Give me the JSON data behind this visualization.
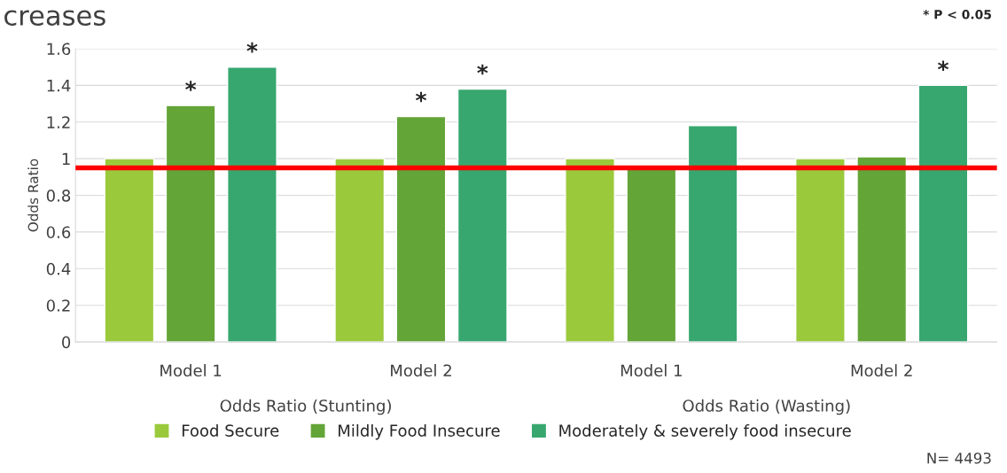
{
  "chart_data": {
    "type": "bar",
    "title": "creases",
    "ylabel": "Odds Ratio",
    "categories": [
      "Model 1",
      "Model 2",
      "Model 1",
      "Model 2"
    ],
    "series": [
      {
        "name": "Food Secure",
        "color": "#9aca3c",
        "values": [
          1.0,
          1.0,
          1.0,
          1.0
        ]
      },
      {
        "name": "Mildly Food Insecure",
        "color": "#63a537",
        "values": [
          1.29,
          1.23,
          0.95,
          1.01
        ]
      },
      {
        "name": "Moderately & severely food insecure",
        "color": "#37a76f",
        "values": [
          1.5,
          1.38,
          1.18,
          1.4
        ]
      }
    ],
    "ylim": [
      0,
      1.6
    ],
    "yticks": [
      0,
      {
        "value": 0.2,
        "label": "0.2"
      },
      {
        "value": 0.4,
        "label": "0.4"
      },
      {
        "value": 0.6,
        "label": "0.6"
      },
      {
        "value": 0.8,
        "label": "0.8"
      },
      1,
      {
        "value": 1.2,
        "label": "1.2"
      },
      {
        "value": 1.4,
        "label": "1.4"
      },
      {
        "value": 1.6,
        "label": "1.6"
      }
    ],
    "grid": "y",
    "legend": "bottom",
    "ref_lines": [
      {
        "axis": "y",
        "value": 0.95,
        "color": "#ff0000"
      }
    ],
    "annotations": [
      "Odds Ratio (Stunting)",
      "Odds Ratio (Wasting)",
      "* P < 0.05",
      "N= 4493",
      {
        "text": "*",
        "y": 1.29
      },
      {
        "text": "*",
        "y": 1.5
      },
      {
        "text": "*",
        "y": 1.23
      },
      {
        "text": "*",
        "y": 1.38
      },
      {
        "text": "*",
        "y": 1.4
      }
    ]
  }
}
